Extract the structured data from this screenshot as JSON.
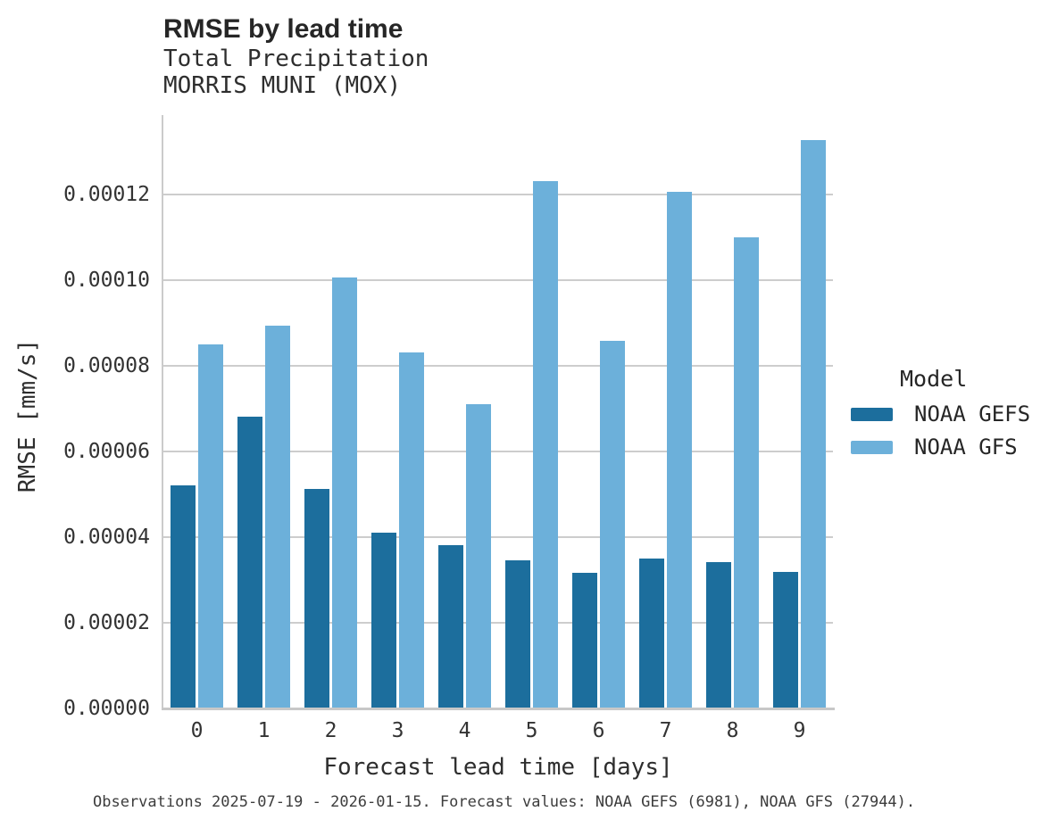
{
  "header": {
    "title": "RMSE by lead time",
    "subtitle_line1": "Total Precipitation",
    "subtitle_line2": "MORRIS MUNI (MOX)"
  },
  "caption": "Observations 2025-07-19 - 2026-01-15. Forecast values: NOAA GEFS (6981), NOAA GFS (27944).",
  "legend": {
    "title": "Model"
  },
  "colors": {
    "noaa_gefs": "#1c6e9d",
    "noaa_gfs": "#6cb0da",
    "gridline": "#cdcdcd",
    "spine": "#c8c8c8",
    "text": "#262626"
  },
  "chart_data": {
    "type": "bar",
    "title": "RMSE by lead time",
    "subtitle": [
      "Total Precipitation",
      "MORRIS MUNI (MOX)"
    ],
    "xlabel": "Forecast lead time [days]",
    "ylabel": "RMSE [mm/s]",
    "categories": [
      "0",
      "1",
      "2",
      "3",
      "4",
      "5",
      "6",
      "7",
      "8",
      "9"
    ],
    "series": [
      {
        "name": "NOAA GEFS",
        "color": "#1c6e9d",
        "values": [
          5.18e-05,
          6.8e-05,
          5.11e-05,
          4.08e-05,
          3.8e-05,
          3.44e-05,
          3.14e-05,
          3.48e-05,
          3.39e-05,
          3.16e-05
        ]
      },
      {
        "name": "NOAA GFS",
        "color": "#6cb0da",
        "values": [
          8.48e-05,
          8.92e-05,
          0.0001004,
          8.28e-05,
          7.09e-05,
          0.0001228,
          8.56e-05,
          0.0001204,
          0.0001098,
          0.0001324
        ]
      }
    ],
    "ylim": [
      0,
      0.0001385
    ],
    "yticks": [
      0.0,
      2e-05,
      4e-05,
      6e-05,
      8e-05,
      0.0001,
      0.00012
    ],
    "ytick_labels": [
      "0.00000",
      "0.00002",
      "0.00004",
      "0.00006",
      "0.00008",
      "0.00010",
      "0.00012"
    ],
    "grid": "horizontal",
    "legend_position": "center-right",
    "legend_title": "Model"
  }
}
